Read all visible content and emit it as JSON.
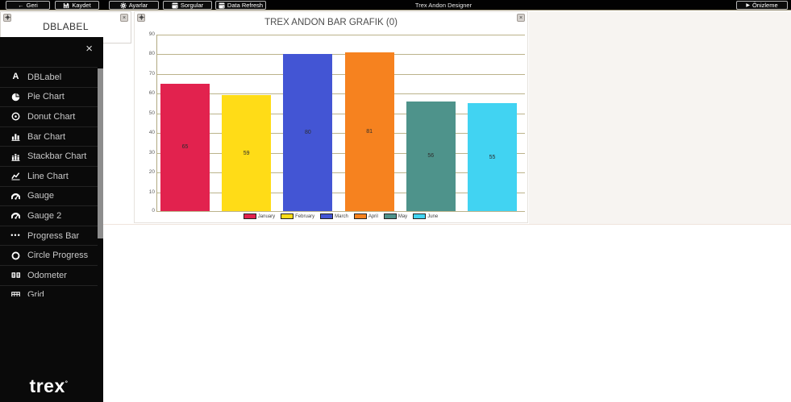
{
  "toolbar": {
    "buttons": [
      {
        "id": "geri",
        "label": "Geri",
        "icon": "back-arrow"
      },
      {
        "id": "kaydet",
        "label": "Kaydet",
        "icon": "floppy-save"
      },
      {
        "id": "ayarlar",
        "label": "Ayarlar",
        "icon": "gear"
      },
      {
        "id": "sorgular",
        "label": "Sorgular",
        "icon": "database"
      },
      {
        "id": "data-refresh",
        "label": "Data Refresh",
        "icon": "database"
      }
    ],
    "title": "Trex Andon Designer",
    "preview": {
      "label": "Önizleme",
      "icon": "play"
    }
  },
  "widgets": {
    "dblabel": {
      "title": "DBLABEL"
    }
  },
  "sidebar": {
    "close_icon": "×",
    "items": [
      {
        "label": "DBLabel",
        "icon": "label"
      },
      {
        "label": "Pie Chart",
        "icon": "pie"
      },
      {
        "label": "Donut Chart",
        "icon": "donut"
      },
      {
        "label": "Bar Chart",
        "icon": "bar"
      },
      {
        "label": "Stackbar Chart",
        "icon": "stackbar"
      },
      {
        "label": "Line Chart",
        "icon": "line"
      },
      {
        "label": "Gauge",
        "icon": "gauge"
      },
      {
        "label": "Gauge 2",
        "icon": "gauge"
      },
      {
        "label": "Progress Bar",
        "icon": "progress"
      },
      {
        "label": "Circle Progress",
        "icon": "circle"
      },
      {
        "label": "Odometer",
        "icon": "odometer"
      },
      {
        "label": "Grid",
        "icon": "grid"
      }
    ],
    "logo": "trex",
    "logo_mark": "°"
  },
  "chart_data": {
    "type": "bar",
    "title": "TREX ANDON BAR GRAFIK (0)",
    "categories": [
      "January",
      "February",
      "March",
      "April",
      "May",
      "June"
    ],
    "values": [
      65,
      59,
      80,
      81,
      56,
      55
    ],
    "colors": [
      "#E2224E",
      "#FFDC17",
      "#4355D4",
      "#F6821F",
      "#4E938B",
      "#41D3F2"
    ],
    "xlabel": "",
    "ylabel": "",
    "ylim": [
      0,
      90
    ],
    "ytick_step": 10,
    "grid": true,
    "legend_position": "bottom",
    "gridline_color": "#bbb38b"
  }
}
